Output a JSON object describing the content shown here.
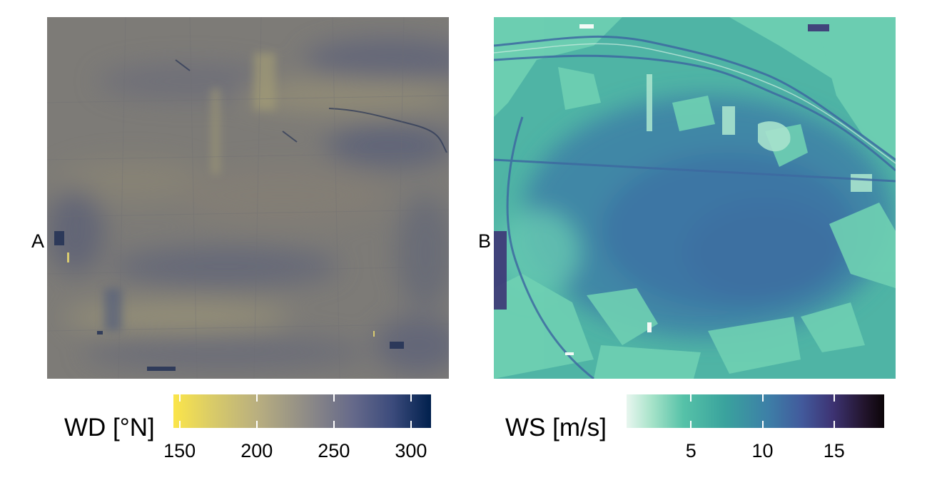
{
  "chart_data": [
    {
      "type": "heatmap",
      "panel_label": "A",
      "title": "",
      "xlabel": "",
      "ylabel": "",
      "colorbar": {
        "title": "WD [°N]",
        "range": [
          146,
          313
        ],
        "ticks": [
          150,
          200,
          250,
          300
        ],
        "tick_labels": [
          "150",
          "200",
          "250",
          "300"
        ],
        "colormap": [
          "#fbe54a",
          "#b8ae80",
          "#8e8b87",
          "#3c4b7c",
          "#00204d"
        ],
        "position": "bottom"
      },
      "base_color": "#7e7c78"
    },
    {
      "type": "heatmap",
      "panel_label": "B",
      "title": "",
      "xlabel": "",
      "ylabel": "",
      "colorbar": {
        "title": "WS [m/s]",
        "range": [
          0.5,
          18.5
        ],
        "ticks": [
          5,
          10,
          15
        ],
        "tick_labels": [
          "5",
          "10",
          "15"
        ],
        "colormap": [
          "#e8f6ef",
          "#56c2a8",
          "#3aa39d",
          "#425a9c",
          "#3d3373",
          "#0c0508"
        ],
        "position": "bottom"
      },
      "base_color": "#3b9aa0"
    }
  ]
}
